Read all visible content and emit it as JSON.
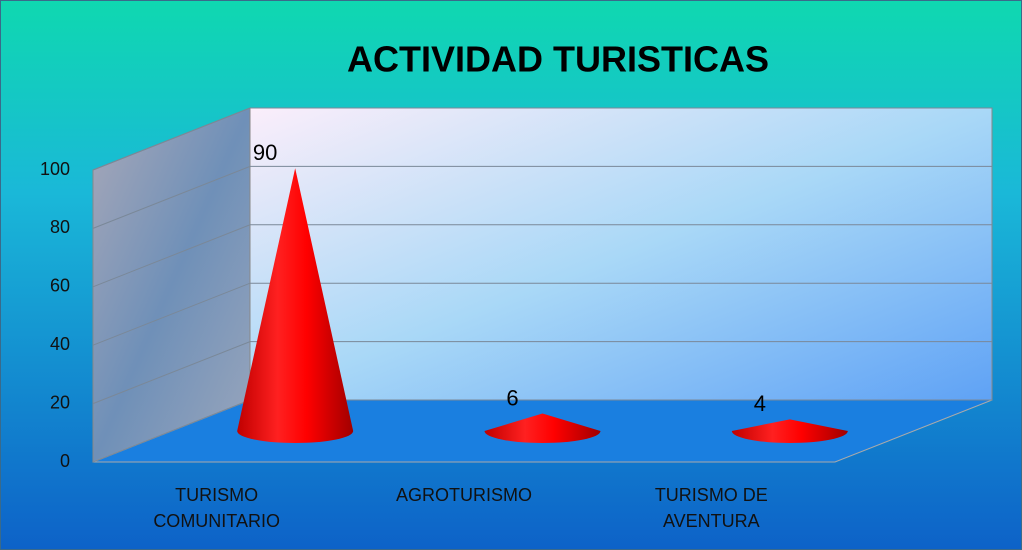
{
  "chart_data": {
    "type": "cone",
    "title": "ACTIVIDAD TURISTICAS",
    "categories": [
      "TURISMO COMUNITARIO",
      "AGROTURISMO",
      "TURISMO DE AVENTURA"
    ],
    "values": [
      90,
      6,
      4
    ],
    "color": "#ff0000",
    "ylim": [
      0,
      100
    ],
    "yticks": [
      0,
      20,
      40,
      60,
      80,
      100
    ],
    "grid": true
  }
}
